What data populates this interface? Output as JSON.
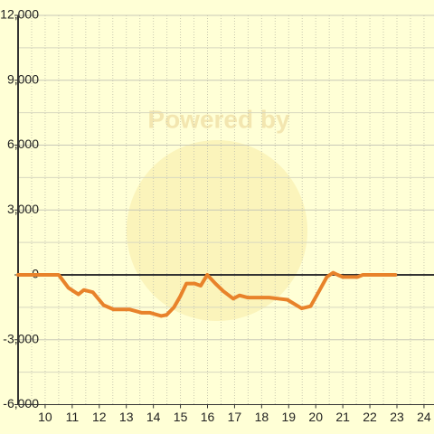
{
  "chart_data": {
    "type": "line",
    "watermark": "Powered by",
    "x": [
      9.0,
      10.5,
      10.86,
      11.23,
      11.43,
      11.76,
      12.16,
      12.53,
      13.13,
      13.56,
      13.86,
      14.29,
      14.49,
      14.76,
      14.99,
      15.22,
      15.52,
      15.75,
      15.99,
      16.29,
      16.58,
      16.95,
      17.18,
      17.48,
      18.28,
      18.61,
      18.95,
      19.48,
      19.81,
      20.08,
      20.41,
      20.64,
      20.81,
      21.0,
      21.54,
      21.74,
      22.94
    ],
    "series": [
      {
        "color": "#e8822a",
        "values": [
          0,
          0,
          -600,
          -900,
          -700,
          -800,
          -1400,
          -1600,
          -1600,
          -1750,
          -1750,
          -1900,
          -1850,
          -1500,
          -1000,
          -400,
          -400,
          -500,
          0,
          -400,
          -750,
          -1100,
          -950,
          -1050,
          -1050,
          -1100,
          -1150,
          -1550,
          -1450,
          -850,
          -100,
          100,
          0,
          -100,
          -100,
          0,
          0
        ]
      }
    ],
    "xlim": [
      9,
      24.37
    ],
    "xticks": [
      10,
      11,
      12,
      13,
      14,
      15,
      16,
      17,
      18,
      19,
      20,
      21,
      22,
      23,
      24
    ],
    "ylim": [
      -6000,
      12000
    ],
    "yticks": [
      {
        "value": -6000,
        "label": "-6,000"
      },
      {
        "value": -3000,
        "label": "-3,000"
      },
      0,
      {
        "value": 3000,
        "label": "3,000"
      },
      {
        "value": 6000,
        "label": "6,000"
      },
      {
        "value": 9000,
        "label": "9,000"
      },
      {
        "value": 12000,
        "label": "12,000"
      }
    ],
    "grid": true
  }
}
